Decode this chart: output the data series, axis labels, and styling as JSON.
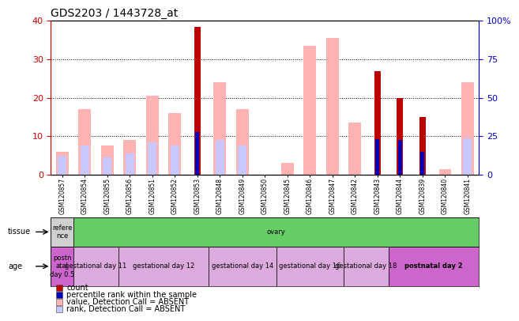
{
  "title": "GDS2203 / 1443728_at",
  "samples": [
    "GSM120857",
    "GSM120854",
    "GSM120855",
    "GSM120856",
    "GSM120851",
    "GSM120852",
    "GSM120853",
    "GSM120848",
    "GSM120849",
    "GSM120850",
    "GSM120845",
    "GSM120846",
    "GSM120847",
    "GSM120842",
    "GSM120843",
    "GSM120844",
    "GSM120839",
    "GSM120840",
    "GSM120841"
  ],
  "count": [
    0,
    0,
    0,
    0,
    0,
    0,
    38.5,
    0,
    0,
    0,
    0,
    0,
    0,
    0,
    27,
    20,
    15,
    0,
    0
  ],
  "percentile": [
    0,
    0,
    0,
    0,
    0,
    0,
    11,
    0,
    0,
    0,
    0,
    0,
    0,
    0,
    9.2,
    9.0,
    6.0,
    0,
    0
  ],
  "value_absent": [
    6,
    17,
    7.5,
    9,
    20.5,
    16,
    0,
    24,
    17,
    0,
    3,
    33.5,
    35.5,
    13.5,
    0,
    0,
    0,
    1.5,
    24
  ],
  "rank_absent": [
    5,
    7.5,
    4.5,
    5.5,
    8.5,
    7.5,
    0,
    9,
    7.5,
    0,
    0,
    0,
    0,
    0,
    0,
    0,
    0,
    0,
    9.5
  ],
  "ylim_left": [
    0,
    40
  ],
  "ylim_right": [
    0,
    100
  ],
  "yticks_left": [
    0,
    10,
    20,
    30,
    40
  ],
  "yticks_right": [
    0,
    25,
    50,
    75,
    100
  ],
  "ytick_labels_right": [
    "0",
    "25",
    "50",
    "75",
    "100%"
  ],
  "color_count": "#bb0000",
  "color_percentile": "#0000bb",
  "color_value_absent": "#ffb3b3",
  "color_rank_absent": "#c8c8ff",
  "tissue_groups": [
    {
      "label": "refere\nnce",
      "start": 0,
      "end": 1,
      "color": "#d0d0d0"
    },
    {
      "label": "ovary",
      "start": 1,
      "end": 19,
      "color": "#66cc66"
    }
  ],
  "age_groups": [
    {
      "label": "postn\natal\nday 0.5",
      "start": 0,
      "end": 1,
      "color": "#cc66cc"
    },
    {
      "label": "gestational day 11",
      "start": 1,
      "end": 3,
      "color": "#ddaadd"
    },
    {
      "label": "gestational day 12",
      "start": 3,
      "end": 7,
      "color": "#ddaadd"
    },
    {
      "label": "gestational day 14",
      "start": 7,
      "end": 10,
      "color": "#ddaadd"
    },
    {
      "label": "gestational day 16",
      "start": 10,
      "end": 13,
      "color": "#ddaadd"
    },
    {
      "label": "gestational day 18",
      "start": 13,
      "end": 15,
      "color": "#ddaadd"
    },
    {
      "label": "postnatal day 2",
      "start": 15,
      "end": 19,
      "color": "#cc66cc"
    }
  ],
  "background_color": "#ffffff",
  "axis_color_left": "#cc0000",
  "axis_color_right": "#0000cc",
  "legend_labels": [
    "count",
    "percentile rank within the sample",
    "value, Detection Call = ABSENT",
    "rank, Detection Call = ABSENT"
  ]
}
